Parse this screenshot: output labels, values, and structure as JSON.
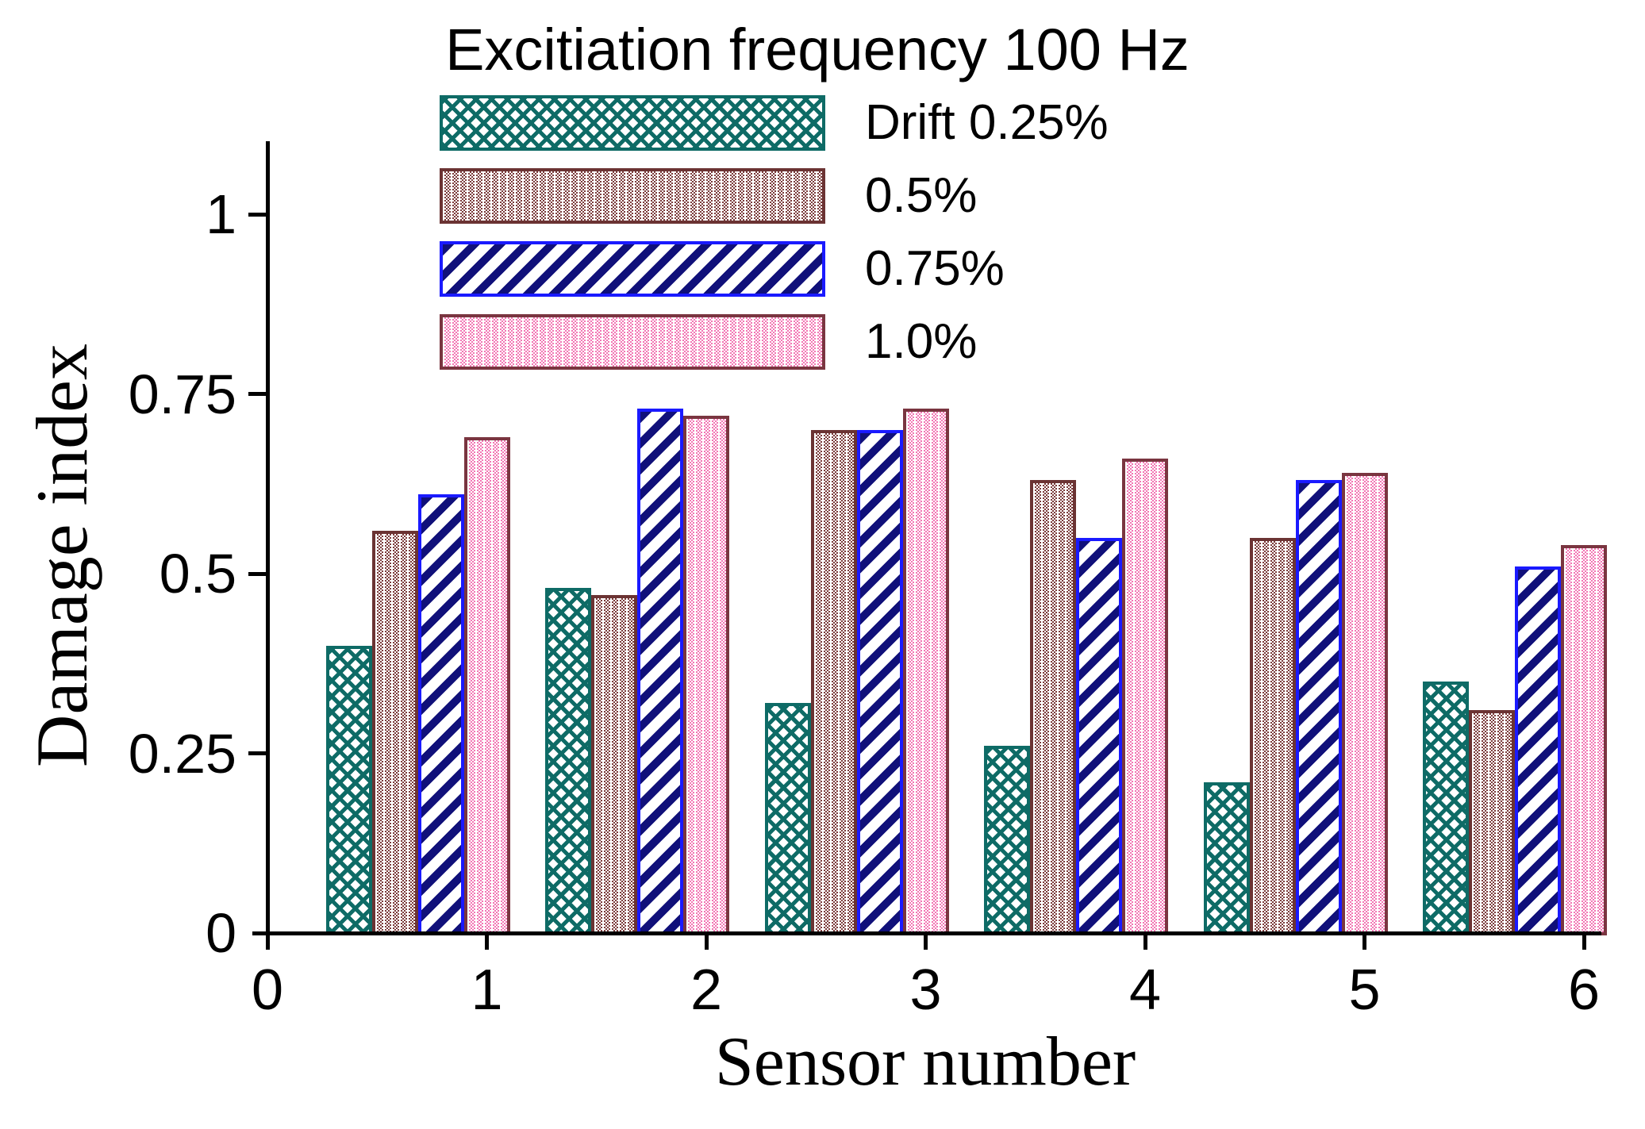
{
  "title": "Excitiation frequency 100 Hz",
  "legend": {
    "items": [
      {
        "label": "Drift 0.25%"
      },
      {
        "label": "0.5%"
      },
      {
        "label": "0.75%"
      },
      {
        "label": "1.0%"
      }
    ]
  },
  "axes": {
    "y": {
      "title": "Damage index",
      "tick_labels": [
        "1",
        "0.75",
        "0.5",
        "0.25",
        "0"
      ],
      "tick_values": [
        1,
        0.75,
        0.5,
        0.25,
        0
      ]
    },
    "x": {
      "title": "Sensor number",
      "tick_labels": [
        "0",
        "1",
        "2",
        "3",
        "4",
        "5",
        "6"
      ],
      "tick_values": [
        0,
        1,
        2,
        3,
        4,
        5,
        6
      ]
    }
  },
  "chart_data": {
    "type": "bar",
    "title": "Excitiation frequency 100 Hz",
    "xlabel": "Sensor number",
    "ylabel": "Damage index",
    "categories": [
      1,
      2,
      3,
      4,
      5,
      6
    ],
    "ylim": [
      0,
      1.1
    ],
    "grid": false,
    "legend_position": "top-left-inside",
    "series": [
      {
        "name": "Drift 0.25%",
        "pattern": "crosshatch",
        "color": "#0E6B66",
        "border": "#0E6B66",
        "values": [
          0.4,
          0.48,
          0.32,
          0.26,
          0.21,
          0.35
        ]
      },
      {
        "name": "0.5%",
        "pattern": "vertical-dotted",
        "color": "#7B3B3B",
        "border": "#6B3333",
        "values": [
          0.56,
          0.47,
          0.7,
          0.63,
          0.55,
          0.31
        ]
      },
      {
        "name": "0.75%",
        "pattern": "diagonal-stripe",
        "color": "#10107A",
        "border": "#1A1AFF",
        "values": [
          0.61,
          0.73,
          0.7,
          0.55,
          0.63,
          0.51
        ]
      },
      {
        "name": "1.0%",
        "pattern": "vertical-dotted",
        "color": "#F277B4",
        "border": "#7A3540",
        "values": [
          0.69,
          0.72,
          0.73,
          0.66,
          0.64,
          0.54
        ]
      }
    ]
  }
}
